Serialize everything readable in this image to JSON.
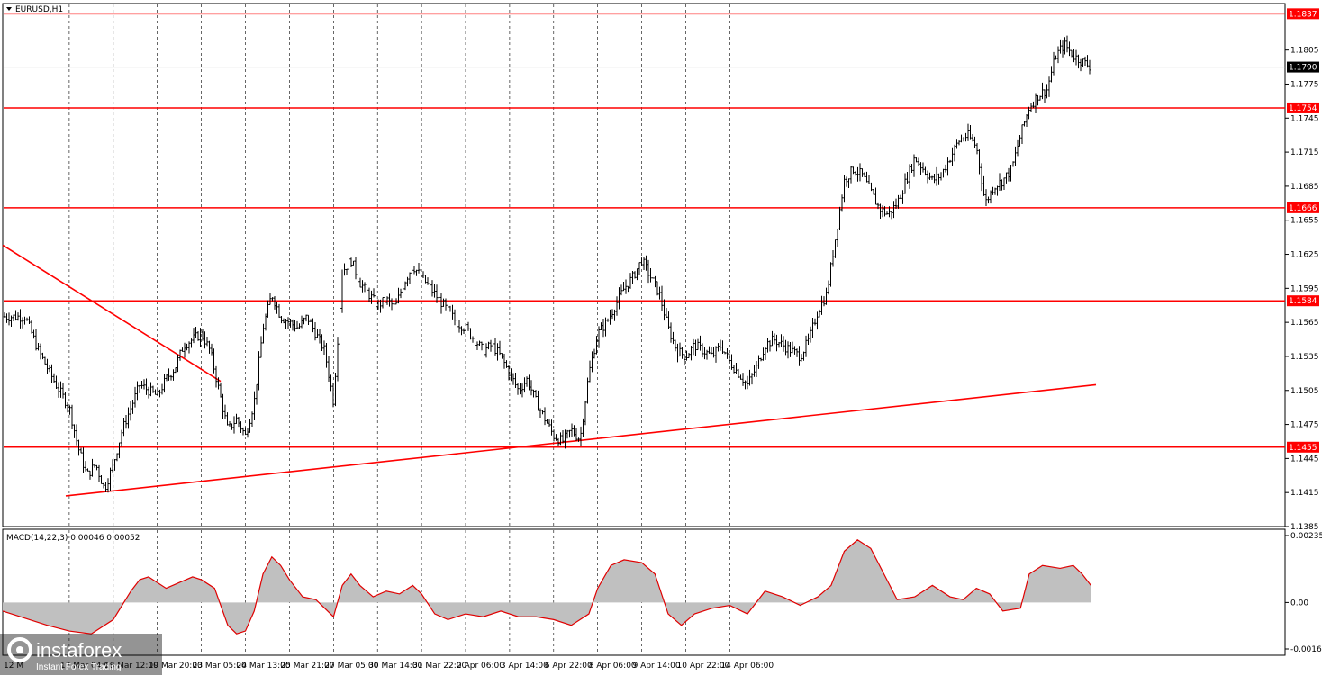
{
  "chart_data": [
    {
      "type": "candlestick",
      "symbol": "EURUSD,H1",
      "ylim": [
        1.1385,
        1.1846
      ],
      "price_ticks": [
        "1.1805",
        "1.1775",
        "1.1745",
        "1.1715",
        "1.1685",
        "1.1655",
        "1.1625",
        "1.1595",
        "1.1565",
        "1.1535",
        "1.1505",
        "1.1475",
        "1.1445",
        "1.1415",
        "1.1385"
      ],
      "current_price": "1.1790",
      "levels": [
        {
          "label": "1.1837",
          "value": 1.1837
        },
        {
          "label": "1.1754",
          "value": 1.1754
        },
        {
          "label": "1.1666",
          "value": 1.1666
        },
        {
          "label": "1.1584",
          "value": 1.1584
        },
        {
          "label": "1.1455",
          "value": 1.1455
        }
      ],
      "trendlines": [
        {
          "name": "descending-resistance",
          "points": [
            [
              "12 Mar 04:00",
              1.1633
            ],
            [
              "18 Mar 20:00",
              1.1513
            ]
          ]
        },
        {
          "name": "ascending-support",
          "points": [
            [
              "16 Mar 04:00",
              1.1412
            ],
            [
              "15 Apr 12:00",
              1.151
            ]
          ]
        }
      ],
      "time_labels": [
        "12 Mar 2026",
        "17 Mar 04:00",
        "18 Mar 12:00",
        "19 Mar 20:00",
        "23 Mar 05:00",
        "24 Mar 13:00",
        "25 Mar 21:00",
        "27 Mar 05:00",
        "30 Mar 14:00",
        "31 Mar 22:00",
        "2 Apr 06:00",
        "3 Apr 14:00",
        "6 Apr 22:00",
        "8 Apr 06:00",
        "9 Apr 14:00",
        "10 Apr 22:00",
        "14 Apr 06:00"
      ],
      "close_path": [
        [
          0,
          1.157
        ],
        [
          0.3,
          1.154
        ],
        [
          0.7,
          1.151
        ],
        [
          1.0,
          1.149
        ],
        [
          1.2,
          1.1455
        ],
        [
          1.4,
          1.143
        ],
        [
          1.6,
          1.144
        ],
        [
          1.8,
          1.1418
        ],
        [
          2.0,
          1.144
        ],
        [
          2.2,
          1.147
        ],
        [
          2.4,
          1.149
        ],
        [
          2.6,
          1.151
        ],
        [
          2.8,
          1.1505
        ],
        [
          3.0,
          1.15
        ],
        [
          3.2,
          1.1515
        ],
        [
          3.4,
          1.1525
        ],
        [
          3.6,
          1.1545
        ],
        [
          3.8,
          1.155
        ],
        [
          4.0,
          1.1555
        ],
        [
          4.2,
          1.154
        ],
        [
          4.4,
          1.1505
        ],
        [
          4.6,
          1.147
        ],
        [
          4.8,
          1.148
        ],
        [
          5.0,
          1.1465
        ],
        [
          5.2,
          1.1495
        ],
        [
          5.4,
          1.156
        ],
        [
          5.6,
          1.159
        ],
        [
          5.8,
          1.157
        ],
        [
          6.0,
          1.1565
        ],
        [
          6.2,
          1.156
        ],
        [
          6.4,
          1.157
        ],
        [
          6.6,
          1.1555
        ],
        [
          6.8,
          1.154
        ],
        [
          7.0,
          1.1495
        ],
        [
          7.2,
          1.161
        ],
        [
          7.4,
          1.162
        ],
        [
          7.6,
          1.16
        ],
        [
          7.8,
          1.159
        ],
        [
          8.0,
          1.158
        ],
        [
          8.2,
          1.1585
        ],
        [
          8.4,
          1.1578
        ],
        [
          8.6,
          1.16
        ],
        [
          8.8,
          1.1615
        ],
        [
          9.0,
          1.1605
        ],
        [
          9.2,
          1.1595
        ],
        [
          9.4,
          1.1585
        ],
        [
          9.6,
          1.1575
        ],
        [
          9.8,
          1.1565
        ],
        [
          10.0,
          1.156
        ],
        [
          10.2,
          1.155
        ],
        [
          10.4,
          1.154
        ],
        [
          10.6,
          1.1545
        ],
        [
          10.8,
          1.1535
        ],
        [
          11.0,
          1.152
        ],
        [
          11.2,
          1.1505
        ],
        [
          11.4,
          1.1515
        ],
        [
          11.6,
          1.1495
        ],
        [
          11.8,
          1.148
        ],
        [
          12.0,
          1.1465
        ],
        [
          12.2,
          1.146
        ],
        [
          12.4,
          1.147
        ],
        [
          12.6,
          1.1462
        ],
        [
          12.8,
          1.152
        ],
        [
          13.0,
          1.1555
        ],
        [
          13.2,
          1.1565
        ],
        [
          13.4,
          1.158
        ],
        [
          13.6,
          1.1595
        ],
        [
          13.8,
          1.1605
        ],
        [
          14.0,
          1.162
        ],
        [
          14.2,
          1.1605
        ],
        [
          14.4,
          1.159
        ],
        [
          14.6,
          1.156
        ],
        [
          14.8,
          1.154
        ],
        [
          15.0,
          1.1535
        ],
        [
          15.2,
          1.1545
        ],
        [
          15.4,
          1.154
        ],
        [
          15.6,
          1.1535
        ],
        [
          15.8,
          1.1545
        ],
        [
          16.0,
          1.153
        ],
        [
          16.2,
          1.152
        ],
        [
          16.4,
          1.151
        ],
        [
          16.6,
          1.1525
        ],
        [
          16.8,
          1.1545
        ],
        [
          17.0,
          1.155
        ],
        [
          17.2,
          1.1545
        ],
        [
          17.4,
          1.154
        ],
        [
          17.6,
          1.1535
        ],
        [
          17.8,
          1.155
        ],
        [
          18.0,
          1.1575
        ],
        [
          18.2,
          1.159
        ],
        [
          18.4,
          1.164
        ],
        [
          18.6,
          1.169
        ],
        [
          18.8,
          1.17
        ],
        [
          19.0,
          1.1695
        ],
        [
          19.2,
          1.168
        ],
        [
          19.4,
          1.1665
        ],
        [
          19.6,
          1.166
        ],
        [
          19.8,
          1.167
        ],
        [
          20.0,
          1.169
        ],
        [
          20.2,
          1.171
        ],
        [
          20.4,
          1.17
        ],
        [
          20.6,
          1.169
        ],
        [
          20.8,
          1.1695
        ],
        [
          21.0,
          1.171
        ],
        [
          21.2,
          1.1725
        ],
        [
          21.4,
          1.173
        ],
        [
          21.6,
          1.172
        ],
        [
          21.8,
          1.167
        ],
        [
          22.0,
          1.1685
        ],
        [
          22.2,
          1.169
        ],
        [
          22.4,
          1.17
        ],
        [
          22.6,
          1.173
        ],
        [
          22.8,
          1.1755
        ],
        [
          23.0,
          1.1765
        ],
        [
          23.2,
          1.177
        ],
        [
          23.4,
          1.18
        ],
        [
          23.6,
          1.181
        ],
        [
          23.8,
          1.18
        ],
        [
          24.0,
          1.1795
        ],
        [
          24.2,
          1.179
        ]
      ],
      "volatility": 0.0011
    },
    {
      "type": "area",
      "title": "MACD(14,22,3) 0.00046 0.00052",
      "ylim": [
        -0.00163,
        0.00235
      ],
      "ticks": [
        "0.00235",
        "0.00",
        "-0.00163"
      ],
      "path": [
        [
          0,
          -0.0003
        ],
        [
          0.5,
          -0.0008
        ],
        [
          1.0,
          -0.001
        ],
        [
          1.5,
          -0.0011
        ],
        [
          2.0,
          -0.0006
        ],
        [
          2.4,
          0.0004
        ],
        [
          2.6,
          0.0008
        ],
        [
          2.8,
          0.0009
        ],
        [
          3.0,
          0.0007
        ],
        [
          3.2,
          0.0005
        ],
        [
          3.5,
          0.0007
        ],
        [
          3.8,
          0.0009
        ],
        [
          4.0,
          0.0008
        ],
        [
          4.3,
          0.0005
        ],
        [
          4.6,
          -0.0008
        ],
        [
          4.8,
          -0.0011
        ],
        [
          5.0,
          -0.001
        ],
        [
          5.2,
          -0.0003
        ],
        [
          5.4,
          0.001
        ],
        [
          5.6,
          0.0016
        ],
        [
          5.8,
          0.0013
        ],
        [
          6.0,
          0.0008
        ],
        [
          6.3,
          0.0002
        ],
        [
          6.6,
          0.0001
        ],
        [
          7.0,
          -0.0005
        ],
        [
          7.2,
          0.0006
        ],
        [
          7.4,
          0.001
        ],
        [
          7.6,
          0.0006
        ],
        [
          7.9,
          0.0002
        ],
        [
          8.2,
          0.0004
        ],
        [
          8.5,
          0.0003
        ],
        [
          8.8,
          0.0006
        ],
        [
          9.0,
          0.0003
        ],
        [
          9.3,
          -0.0004
        ],
        [
          9.6,
          -0.0006
        ],
        [
          10.0,
          -0.0004
        ],
        [
          10.4,
          -0.0005
        ],
        [
          10.8,
          -0.0003
        ],
        [
          11.2,
          -0.0005
        ],
        [
          11.6,
          -0.0005
        ],
        [
          12.0,
          -0.0006
        ],
        [
          12.4,
          -0.0008
        ],
        [
          12.8,
          -0.0004
        ],
        [
          13.0,
          0.0005
        ],
        [
          13.3,
          0.0013
        ],
        [
          13.6,
          0.0015
        ],
        [
          14.0,
          0.0014
        ],
        [
          14.3,
          0.001
        ],
        [
          14.6,
          -0.0004
        ],
        [
          14.9,
          -0.0008
        ],
        [
          15.2,
          -0.0004
        ],
        [
          15.6,
          -0.0002
        ],
        [
          16.0,
          -0.0001
        ],
        [
          16.4,
          -0.0004
        ],
        [
          16.8,
          0.0004
        ],
        [
          17.2,
          0.0002
        ],
        [
          17.6,
          -0.0001
        ],
        [
          18.0,
          0.0002
        ],
        [
          18.3,
          0.0006
        ],
        [
          18.6,
          0.0018
        ],
        [
          18.9,
          0.0022
        ],
        [
          19.2,
          0.0019
        ],
        [
          19.5,
          0.001
        ],
        [
          19.8,
          0.0001
        ],
        [
          20.2,
          0.0002
        ],
        [
          20.6,
          0.0006
        ],
        [
          21.0,
          0.0002
        ],
        [
          21.3,
          0.0001
        ],
        [
          21.6,
          0.0005
        ],
        [
          21.9,
          0.0003
        ],
        [
          22.2,
          -0.0003
        ],
        [
          22.6,
          -0.0002
        ],
        [
          22.8,
          0.001
        ],
        [
          23.1,
          0.0013
        ],
        [
          23.5,
          0.0012
        ],
        [
          23.8,
          0.0013
        ],
        [
          24.0,
          0.001
        ],
        [
          24.2,
          0.0006
        ]
      ]
    }
  ],
  "watermark": {
    "brand": "instaforex",
    "tagline": "Instant Forex Trading",
    "fragment": "12 M"
  }
}
